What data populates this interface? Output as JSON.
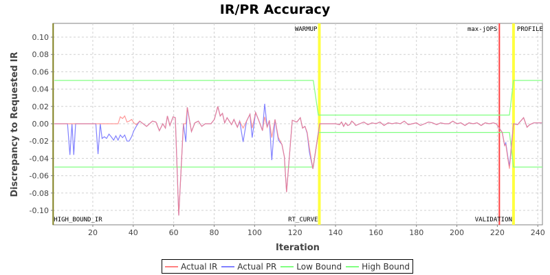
{
  "chart_data": {
    "type": "line",
    "title": "IR/PR Accuracy",
    "xlabel": "Iteration",
    "ylabel": "Discrepancy to Requested IR",
    "xlim": [
      0.3,
      242.3
    ],
    "ylim": [
      -0.1167,
      0.1159
    ],
    "xticks": [
      20,
      40,
      60,
      80,
      100,
      120,
      140,
      160,
      180,
      200,
      220,
      240
    ],
    "yticks": [
      -0.1,
      -0.08,
      -0.06,
      -0.04,
      -0.02,
      0.0,
      0.02,
      0.04,
      0.06,
      0.08,
      0.1
    ],
    "grid": true,
    "legend_position": "bottom",
    "series": [
      {
        "name": "Actual PR",
        "color": "#8080ff",
        "points": [
          [
            1,
            0
          ],
          [
            7.5,
            0
          ],
          [
            8.7,
            -0.036
          ],
          [
            9.7,
            0
          ],
          [
            10.6,
            -0.036
          ],
          [
            11.5,
            0
          ],
          [
            21.5,
            0
          ],
          [
            22.6,
            -0.035
          ],
          [
            23.7,
            0
          ],
          [
            24.6,
            -0.017
          ],
          [
            25.7,
            -0.015
          ],
          [
            26.8,
            -0.017
          ],
          [
            28,
            -0.012
          ],
          [
            29.1,
            -0.015
          ],
          [
            30.3,
            -0.019
          ],
          [
            31.4,
            -0.014
          ],
          [
            32.5,
            -0.019
          ],
          [
            33.6,
            -0.013
          ],
          [
            34.7,
            -0.016
          ],
          [
            35.8,
            -0.013
          ],
          [
            36.9,
            -0.02
          ],
          [
            38,
            -0.02
          ],
          [
            39.2,
            -0.015
          ],
          [
            40.3,
            -0.008
          ],
          [
            41.5,
            -0.003
          ],
          [
            43.2,
            0.003
          ],
          [
            46.6,
            -0.003
          ],
          [
            49.5,
            0.003
          ],
          [
            51.2,
            0.002
          ],
          [
            52.9,
            -0.008
          ],
          [
            54.6,
            0
          ],
          [
            55.9,
            -0.005
          ],
          [
            56.9,
            0.009
          ],
          [
            58.1,
            -0.002
          ],
          [
            59.7,
            0.008
          ],
          [
            60.8,
            0.007
          ],
          [
            62.5,
            -0.106
          ],
          [
            64.8,
            0
          ],
          [
            66,
            -0.021
          ],
          [
            66.7,
            0.019
          ],
          [
            68.8,
            -0.009
          ],
          [
            70.5,
            0.001
          ],
          [
            72.2,
            0.003
          ],
          [
            73.9,
            -0.003
          ],
          [
            75.6,
            0
          ],
          [
            78.4,
            0
          ],
          [
            80.1,
            0.005
          ],
          [
            81.8,
            0.02
          ],
          [
            83,
            0.009
          ],
          [
            84.1,
            0.012
          ],
          [
            85.2,
            0.001
          ],
          [
            86.4,
            0.007
          ],
          [
            88.6,
            -0.001
          ],
          [
            89.8,
            0.005
          ],
          [
            91.5,
            -0.004
          ],
          [
            92.6,
            0.003
          ],
          [
            94.3,
            -0.021
          ],
          [
            96,
            0.003
          ],
          [
            97.7,
            0.011
          ],
          [
            98.8,
            -0.016
          ],
          [
            100.5,
            0.013
          ],
          [
            102.2,
            0.003
          ],
          [
            103.9,
            -0.008
          ],
          [
            105,
            0.023
          ],
          [
            106.2,
            -0.004
          ],
          [
            107.3,
            0.004
          ],
          [
            108.5,
            -0.042
          ],
          [
            110.1,
            0.005
          ],
          [
            111.8,
            -0.019
          ],
          [
            113.5,
            -0.024
          ],
          [
            114.7,
            -0.038
          ],
          [
            115.8,
            -0.079
          ],
          [
            118.6,
            0.004
          ],
          [
            120.9,
            0.002
          ],
          [
            122.6,
            0.007
          ],
          [
            123.7,
            -0.005
          ],
          [
            124.9,
            -0.003
          ],
          [
            126,
            -0.011
          ],
          [
            127.1,
            -0.033
          ],
          [
            128.8,
            -0.052
          ],
          [
            132.2,
            0
          ],
          [
            140,
            0
          ],
          [
            142,
            -0.001
          ],
          [
            143,
            0.002
          ],
          [
            144,
            -0.003
          ],
          [
            145,
            0.001
          ],
          [
            146,
            -0.002
          ],
          [
            147,
            -0.001
          ],
          [
            148,
            0.003
          ],
          [
            149,
            0.001
          ],
          [
            150,
            -0.002
          ],
          [
            152,
            0
          ],
          [
            154,
            0.002
          ],
          [
            156,
            -0.001
          ],
          [
            158,
            0.001
          ],
          [
            160,
            0
          ],
          [
            162,
            0.002
          ],
          [
            164,
            -0.002
          ],
          [
            166,
            0.001
          ],
          [
            168,
            0
          ],
          [
            170,
            0.001
          ],
          [
            172,
            0
          ],
          [
            174,
            0.003
          ],
          [
            176,
            -0.001
          ],
          [
            178,
            0
          ],
          [
            180,
            0.001
          ],
          [
            182,
            -0.002
          ],
          [
            184,
            0
          ],
          [
            186,
            0.002
          ],
          [
            188,
            0.001
          ],
          [
            190,
            -0.001
          ],
          [
            192,
            0.001
          ],
          [
            194,
            0
          ],
          [
            196,
            0
          ],
          [
            198,
            0.003
          ],
          [
            200,
            0
          ],
          [
            202,
            0.001
          ],
          [
            204,
            -0.002
          ],
          [
            206,
            0.001
          ],
          [
            208,
            0
          ],
          [
            210,
            0.001
          ],
          [
            212,
            -0.002
          ],
          [
            214,
            0.001
          ],
          [
            216,
            0
          ],
          [
            218,
            0.001
          ],
          [
            219.5,
            0
          ],
          [
            222.4,
            -0.01
          ],
          [
            223.6,
            -0.025
          ],
          [
            224.2,
            -0.022
          ],
          [
            225.3,
            -0.04
          ],
          [
            226,
            -0.049
          ],
          [
            228,
            0
          ],
          [
            230,
            -0.001
          ],
          [
            233,
            0.007
          ],
          [
            234.7,
            -0.004
          ],
          [
            236,
            -0.001
          ],
          [
            238,
            0.001
          ],
          [
            242,
            0.001
          ]
        ]
      },
      {
        "name": "Actual IR",
        "color": "#ff8080",
        "points": [
          [
            1,
            0
          ],
          [
            32.5,
            0
          ],
          [
            33.6,
            0.008
          ],
          [
            34.7,
            0.006
          ],
          [
            35.8,
            0.009
          ],
          [
            36.9,
            0.002
          ],
          [
            38,
            0.003
          ],
          [
            39.2,
            0.005
          ],
          [
            40.3,
            0.001
          ],
          [
            41.5,
            -0.001
          ],
          [
            43.2,
            0.003
          ],
          [
            46.6,
            -0.003
          ],
          [
            49.5,
            0.003
          ],
          [
            51.2,
            0.002
          ],
          [
            52.9,
            -0.008
          ],
          [
            54.6,
            0
          ],
          [
            55.9,
            -0.005
          ],
          [
            56.9,
            0.009
          ],
          [
            58.1,
            -0.002
          ],
          [
            59.7,
            0.008
          ],
          [
            60.8,
            0.007
          ],
          [
            62.5,
            -0.106
          ],
          [
            64.8,
            0
          ],
          [
            66,
            0
          ],
          [
            66.7,
            0.019
          ],
          [
            68.8,
            -0.009
          ],
          [
            70.5,
            0.001
          ],
          [
            72.2,
            0.003
          ],
          [
            73.9,
            -0.003
          ],
          [
            75.6,
            0
          ],
          [
            78.4,
            0
          ],
          [
            80.1,
            0.005
          ],
          [
            81.8,
            0.02
          ],
          [
            83,
            0.009
          ],
          [
            84.1,
            0.012
          ],
          [
            85.2,
            0.001
          ],
          [
            86.4,
            0.007
          ],
          [
            88.6,
            -0.001
          ],
          [
            89.8,
            0.005
          ],
          [
            91.5,
            -0.004
          ],
          [
            92.6,
            0.003
          ],
          [
            94.3,
            -0.005
          ],
          [
            96,
            0.003
          ],
          [
            97.7,
            0.011
          ],
          [
            98.8,
            -0.005
          ],
          [
            100.5,
            0.013
          ],
          [
            102.2,
            0.003
          ],
          [
            103.9,
            -0.008
          ],
          [
            105,
            0.008
          ],
          [
            106.2,
            -0.004
          ],
          [
            107.3,
            0.004
          ],
          [
            108.5,
            -0.016
          ],
          [
            110.1,
            0.005
          ],
          [
            111.8,
            -0.016
          ],
          [
            113.5,
            -0.024
          ],
          [
            114.7,
            -0.038
          ],
          [
            115.8,
            -0.079
          ],
          [
            118.6,
            0.004
          ],
          [
            120.9,
            0.002
          ],
          [
            122.6,
            0.007
          ],
          [
            123.7,
            -0.005
          ],
          [
            124.9,
            -0.003
          ],
          [
            126,
            -0.01
          ],
          [
            127.1,
            -0.028
          ],
          [
            128.8,
            -0.052
          ],
          [
            132.2,
            0
          ],
          [
            140,
            0
          ],
          [
            142,
            -0.001
          ],
          [
            143,
            0.002
          ],
          [
            144,
            -0.003
          ],
          [
            145,
            0.001
          ],
          [
            146,
            -0.002
          ],
          [
            147,
            -0.001
          ],
          [
            148,
            0.003
          ],
          [
            149,
            0.001
          ],
          [
            150,
            -0.002
          ],
          [
            152,
            0
          ],
          [
            154,
            0.002
          ],
          [
            156,
            -0.001
          ],
          [
            158,
            0.001
          ],
          [
            160,
            0
          ],
          [
            162,
            0.002
          ],
          [
            164,
            -0.002
          ],
          [
            166,
            0.001
          ],
          [
            168,
            0
          ],
          [
            170,
            0.001
          ],
          [
            172,
            0
          ],
          [
            174,
            0.003
          ],
          [
            176,
            -0.001
          ],
          [
            178,
            0
          ],
          [
            180,
            0.001
          ],
          [
            182,
            -0.002
          ],
          [
            184,
            0
          ],
          [
            186,
            0.002
          ],
          [
            188,
            0.001
          ],
          [
            190,
            -0.001
          ],
          [
            192,
            0.001
          ],
          [
            194,
            0
          ],
          [
            196,
            0
          ],
          [
            198,
            0.003
          ],
          [
            200,
            0
          ],
          [
            202,
            0.001
          ],
          [
            204,
            -0.002
          ],
          [
            206,
            0.001
          ],
          [
            208,
            0
          ],
          [
            210,
            0.001
          ],
          [
            212,
            -0.002
          ],
          [
            214,
            0.001
          ],
          [
            216,
            0
          ],
          [
            218,
            0.001
          ],
          [
            219.5,
            0
          ],
          [
            222.4,
            -0.01
          ],
          [
            223.6,
            -0.025
          ],
          [
            224.2,
            -0.024
          ],
          [
            225.3,
            -0.042
          ],
          [
            226,
            -0.052
          ],
          [
            228,
            0
          ],
          [
            230,
            -0.001
          ],
          [
            233,
            0.007
          ],
          [
            234.7,
            -0.004
          ],
          [
            236,
            -0.001
          ],
          [
            238,
            0.001
          ],
          [
            242,
            0.001
          ]
        ]
      },
      {
        "name": "Low Bound",
        "color": "#80ff80",
        "points": [
          [
            1,
            -0.05
          ],
          [
            129,
            -0.05
          ],
          [
            131.5,
            -0.01
          ],
          [
            226,
            -0.01
          ],
          [
            228,
            -0.05
          ],
          [
            242.3,
            -0.05
          ]
        ]
      },
      {
        "name": "High Bound",
        "color": "#80ff80",
        "points": [
          [
            1,
            0.05
          ],
          [
            129,
            0.05
          ],
          [
            131.5,
            0.01
          ],
          [
            226,
            0.01
          ],
          [
            228,
            0.05
          ],
          [
            242.3,
            0.05
          ]
        ]
      }
    ],
    "legend": [
      "Actual IR",
      "Actual PR",
      "Low Bound",
      "High Bound"
    ],
    "markers": [
      {
        "x": 0.4,
        "color": "#808020",
        "top_label": "",
        "bottom_label": "HIGH_BOUND_IR",
        "anchor": "start"
      },
      {
        "x": 132,
        "color": "#ffff40",
        "top_label": "WARMUP",
        "bottom_label": "RT_CURVE",
        "anchor": "end"
      },
      {
        "x": 221,
        "color": "#ff4040",
        "top_label": "max-jOPS",
        "bottom_label": "",
        "anchor": "end"
      },
      {
        "x": 228,
        "color": "#ffff40",
        "top_label": "PROFILE",
        "bottom_label": "VALIDATION",
        "anchor": "mixed"
      }
    ]
  }
}
